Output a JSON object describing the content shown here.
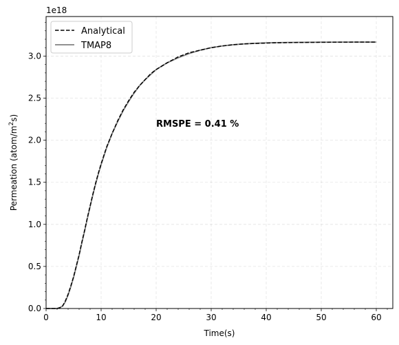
{
  "chart_data": {
    "type": "line",
    "xlabel": "Time(s)",
    "ylabel_main": "Permeation (atom/m",
    "ylabel_sup": "2",
    "ylabel_tail": "s)",
    "offset_text": "1e18",
    "annotation": "RMSPE = 0.41 %",
    "xlim": [
      0,
      63
    ],
    "ylim": [
      0,
      3.47
    ],
    "xticks": [
      0,
      10,
      20,
      30,
      40,
      50,
      60
    ],
    "xtick_labels": [
      "0",
      "10",
      "20",
      "30",
      "40",
      "50",
      "60"
    ],
    "yticks": [
      0.0,
      0.5,
      1.0,
      1.5,
      2.0,
      2.5,
      3.0
    ],
    "ytick_labels": [
      "0.0",
      "0.5",
      "1.0",
      "1.5",
      "2.0",
      "2.5",
      "3.0"
    ],
    "grid": true,
    "legend_position": "top-left",
    "x": [
      0,
      1,
      2,
      2.5,
      3,
      3.5,
      4,
      4.5,
      5,
      5.5,
      6,
      6.5,
      7,
      7.5,
      8,
      8.5,
      9,
      9.5,
      10,
      11,
      12,
      13,
      14,
      15,
      16,
      17,
      18,
      19,
      20,
      22,
      24,
      26,
      28,
      30,
      32,
      34,
      36,
      38,
      40,
      42,
      44,
      46,
      48,
      50,
      52,
      54,
      56,
      58,
      60
    ],
    "series": [
      {
        "name": "Analytical",
        "color": "#000000",
        "dash": "dashed",
        "values": [
          0,
          0,
          0,
          0.01,
          0.03,
          0.09,
          0.17,
          0.27,
          0.38,
          0.51,
          0.64,
          0.79,
          0.93,
          1.08,
          1.22,
          1.36,
          1.49,
          1.61,
          1.72,
          1.92,
          2.08,
          2.23,
          2.36,
          2.47,
          2.57,
          2.65,
          2.72,
          2.79,
          2.84,
          2.92,
          2.99,
          3.04,
          3.07,
          3.1,
          3.12,
          3.135,
          3.145,
          3.15,
          3.155,
          3.158,
          3.16,
          3.162,
          3.163,
          3.164,
          3.165,
          3.165,
          3.166,
          3.166,
          3.166
        ]
      },
      {
        "name": "TMAP8",
        "color": "#808080",
        "dash": "solid",
        "values": [
          0,
          0,
          0,
          0.01,
          0.03,
          0.08,
          0.16,
          0.26,
          0.37,
          0.5,
          0.63,
          0.78,
          0.92,
          1.07,
          1.21,
          1.35,
          1.48,
          1.6,
          1.71,
          1.91,
          2.08,
          2.22,
          2.35,
          2.46,
          2.56,
          2.65,
          2.72,
          2.78,
          2.84,
          2.92,
          2.98,
          3.03,
          3.07,
          3.1,
          3.12,
          3.135,
          3.145,
          3.152,
          3.157,
          3.16,
          3.162,
          3.163,
          3.164,
          3.165,
          3.165,
          3.166,
          3.166,
          3.166,
          3.166
        ]
      }
    ]
  }
}
